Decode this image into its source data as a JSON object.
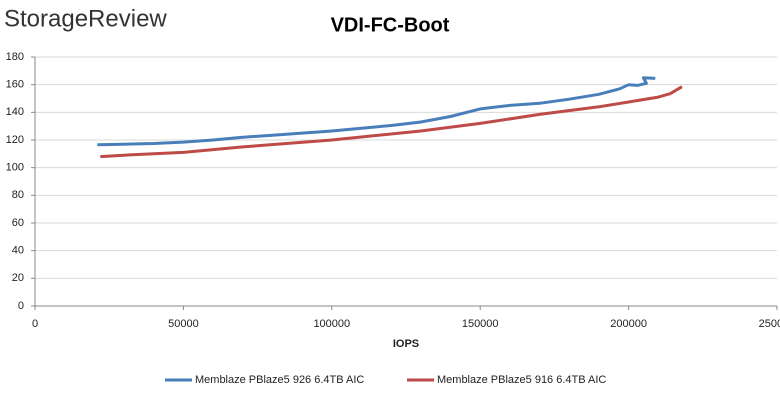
{
  "logo": "StorageReview",
  "chart_data": {
    "type": "line",
    "title": "VDI-FC-Boot",
    "x_label": "IOPS",
    "xlim": [
      0,
      250000
    ],
    "xticks": [
      0,
      50000,
      100000,
      150000,
      200000,
      250000
    ],
    "ylim": [
      0,
      180
    ],
    "yticks": [
      0,
      20,
      40,
      60,
      80,
      100,
      120,
      140,
      160,
      180
    ],
    "grid": true,
    "legend": "bottom",
    "series": [
      {
        "name": "Memblaze PBlaze5 926 6.4TB AIC",
        "color": "#4a7ebb",
        "x": [
          21000,
          30000,
          40000,
          50000,
          60000,
          70000,
          80000,
          90000,
          100000,
          110000,
          120000,
          130000,
          140000,
          150000,
          160000,
          170000,
          180000,
          190000,
          197000,
          200000,
          203000,
          206000,
          205000,
          209000
        ],
        "values": [
          116.5,
          117,
          117.5,
          118.5,
          120,
          122,
          123.5,
          125,
          126.5,
          128.5,
          130.5,
          133,
          137,
          142.5,
          145,
          146.5,
          149.5,
          153,
          157,
          160,
          159.5,
          161,
          165,
          164.5
        ]
      },
      {
        "name": "Memblaze PBlaze5 916 6.4TB AIC",
        "color": "#be4b48",
        "x": [
          22000,
          30000,
          50000,
          70000,
          100000,
          130000,
          150000,
          170000,
          190000,
          200000,
          210000,
          214000,
          218000
        ],
        "values": [
          108,
          109,
          111,
          115,
          120,
          126.5,
          132,
          138.5,
          144,
          147.5,
          151,
          153.5,
          158.5
        ]
      }
    ]
  }
}
